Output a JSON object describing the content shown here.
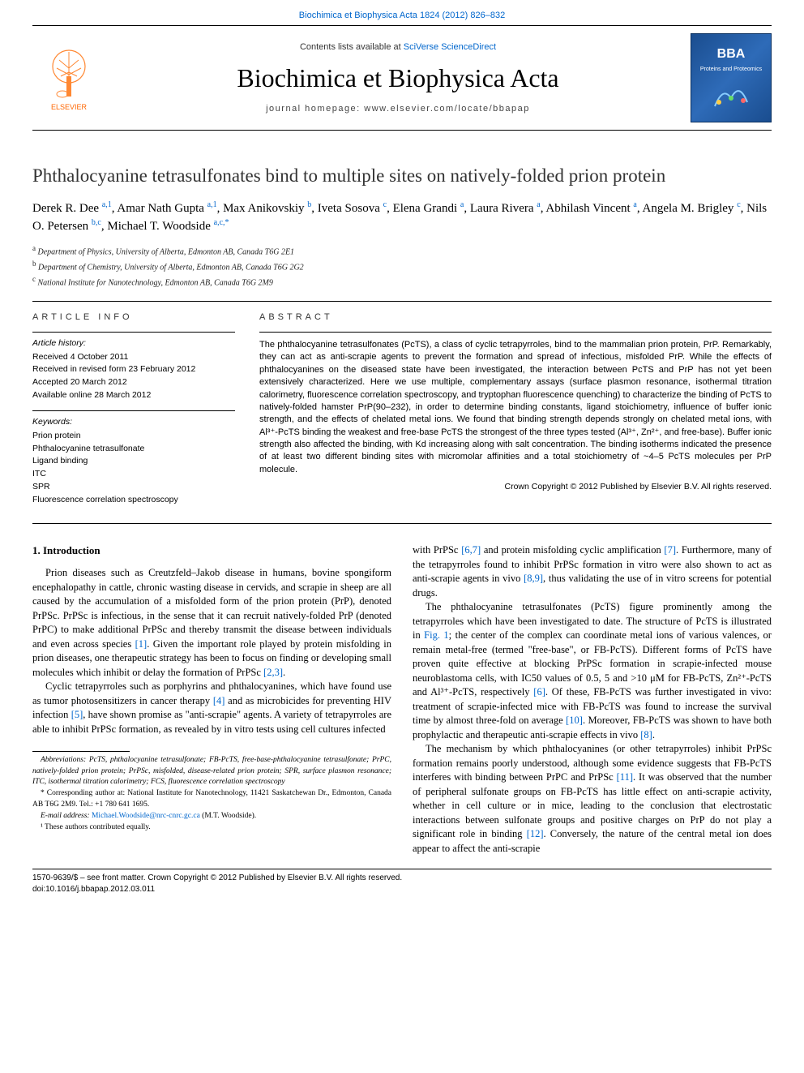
{
  "top_link": "Biochimica et Biophysica Acta 1824 (2012) 826–832",
  "masthead": {
    "contents_prefix": "Contents lists available at ",
    "contents_link": "SciVerse ScienceDirect",
    "journal": "Biochimica et Biophysica Acta",
    "homepage": "journal homepage: www.elsevier.com/locate/bbapap",
    "publisher": "ELSEVIER",
    "right_badge_top": "BBA",
    "right_badge_mid": "Proteins and Proteomics"
  },
  "title": "Phthalocyanine tetrasulfonates bind to multiple sites on natively-folded prion protein",
  "authors_html": "Derek R. Dee <sup>a,1</sup>, Amar Nath Gupta <sup>a,1</sup>, Max Anikovskiy <sup>b</sup>, Iveta Sosova <sup>c</sup>, Elena Grandi <sup>a</sup>, Laura Rivera <sup>a</sup>, Abhilash Vincent <sup>a</sup>, Angela M. Brigley <sup>c</sup>, Nils O. Petersen <sup>b,c</sup>, Michael T. Woodside <sup>a,c,*</sup>",
  "affiliations": [
    {
      "sup": "a",
      "text": "Department of Physics, University of Alberta, Edmonton AB, Canada T6G 2E1"
    },
    {
      "sup": "b",
      "text": "Department of Chemistry, University of Alberta, Edmonton AB, Canada T6G 2G2"
    },
    {
      "sup": "c",
      "text": "National Institute for Nanotechnology, Edmonton AB, Canada T6G 2M9"
    }
  ],
  "article_info": {
    "header": "article info",
    "history_label": "Article history:",
    "history": [
      "Received 4 October 2011",
      "Received in revised form 23 February 2012",
      "Accepted 20 March 2012",
      "Available online 28 March 2012"
    ],
    "keywords_label": "Keywords:",
    "keywords": [
      "Prion protein",
      "Phthalocyanine tetrasulfonate",
      "Ligand binding",
      "ITC",
      "SPR",
      "Fluorescence correlation spectroscopy"
    ]
  },
  "abstract": {
    "header": "abstract",
    "body": "The phthalocyanine tetrasulfonates (PcTS), a class of cyclic tetrapyrroles, bind to the mammalian prion protein, PrP. Remarkably, they can act as anti-scrapie agents to prevent the formation and spread of infectious, misfolded PrP. While the effects of phthalocyanines on the diseased state have been investigated, the interaction between PcTS and PrP has not yet been extensively characterized. Here we use multiple, complementary assays (surface plasmon resonance, isothermal titration calorimetry, fluorescence correlation spectroscopy, and tryptophan fluorescence quenching) to characterize the binding of PcTS to natively-folded hamster PrP(90–232), in order to determine binding constants, ligand stoichiometry, influence of buffer ionic strength, and the effects of chelated metal ions. We found that binding strength depends strongly on chelated metal ions, with Al³⁺-PcTS binding the weakest and free-base PcTS the strongest of the three types tested (Al³⁺, Zn²⁺, and free-base). Buffer ionic strength also affected the binding, with Kd increasing along with salt concentration. The binding isotherms indicated the presence of at least two different binding sites with micromolar affinities and a total stoichiometry of ~4–5 PcTS molecules per PrP molecule.",
    "copyright": "Crown Copyright © 2012 Published by Elsevier B.V. All rights reserved."
  },
  "intro": {
    "heading": "1. Introduction",
    "p1": "Prion diseases such as Creutzfeld–Jakob disease in humans, bovine spongiform encephalopathy in cattle, chronic wasting disease in cervids, and scrapie in sheep are all caused by the accumulation of a misfolded form of the prion protein (PrP), denoted PrPSc. PrPSc is infectious, in the sense that it can recruit natively-folded PrP (denoted PrPC) to make additional PrPSc and thereby transmit the disease between individuals and even across species ",
    "ref1": "[1]",
    "p1b": ". Given the important role played by protein misfolding in prion diseases, one therapeutic strategy has been to focus on finding or developing small molecules which inhibit or delay the formation of PrPSc ",
    "ref2": "[2,3]",
    "p1c": ".",
    "p2a": "Cyclic tetrapyrroles such as porphyrins and phthalocyanines, which have found use as tumor photosensitizers in cancer therapy ",
    "ref3": "[4]",
    "p2b": " and as microbicides for preventing HIV infection ",
    "ref4": "[5]",
    "p2c": ", have shown promise as \"anti-scrapie\" agents. A variety of tetrapyrroles are able to inhibit PrPSc formation, as revealed by in vitro tests using cell cultures infected"
  },
  "col2": {
    "p1a": "with PrPSc ",
    "ref1": "[6,7]",
    "p1b": " and protein misfolding cyclic amplification ",
    "ref2": "[7]",
    "p1c": ". Furthermore, many of the tetrapyrroles found to inhibit PrPSc formation in vitro were also shown to act as anti-scrapie agents in vivo ",
    "ref3": "[8,9]",
    "p1d": ", thus validating the use of in vitro screens for potential drugs.",
    "p2a": "The phthalocyanine tetrasulfonates (PcTS) figure prominently among the tetrapyrroles which have been investigated to date. The structure of PcTS is illustrated in ",
    "fig1": "Fig. 1",
    "p2b": "; the center of the complex can coordinate metal ions of various valences, or remain metal-free (termed \"free-base\", or FB-PcTS). Different forms of PcTS have proven quite effective at blocking PrPSc formation in scrapie-infected mouse neuroblastoma cells, with IC50 values of 0.5, 5 and >10 μM for FB-PcTS, Zn²⁺-PcTS and Al³⁺-PcTS, respectively ",
    "ref4": "[6]",
    "p2c": ". Of these, FB-PcTS was further investigated in vivo: treatment of scrapie-infected mice with FB-PcTS was found to increase the survival time by almost three-fold on average ",
    "ref5": "[10]",
    "p2d": ". Moreover, FB-PcTS was shown to have both prophylactic and therapeutic anti-scrapie effects in vivo ",
    "ref6": "[8]",
    "p2e": ".",
    "p3a": "The mechanism by which phthalocyanines (or other tetrapyrroles) inhibit PrPSc formation remains poorly understood, although some evidence suggests that FB-PcTS interferes with binding between PrPC and PrPSc ",
    "ref7": "[11]",
    "p3b": ". It was observed that the number of peripheral sulfonate groups on FB-PcTS has little effect on anti-scrapie activity, whether in cell culture or in mice, leading to the conclusion that electrostatic interactions between sulfonate groups and positive charges on PrP do not play a significant role in binding ",
    "ref8": "[12]",
    "p3c": ". Conversely, the nature of the central metal ion does appear to affect the anti-scrapie"
  },
  "footnotes": {
    "abbrev": "Abbreviations: PcTS, phthalocyanine tetrasulfonate; FB-PcTS, free-base-phthalocyanine tetrasulfonate; PrPC, natively-folded prion protein; PrPSc, misfolded, disease-related prion protein; SPR, surface plasmon resonance; ITC, isothermal titration calorimetry; FCS, fluorescence correlation spectroscopy",
    "corr": "* Corresponding author at: National Institute for Nanotechnology, 11421 Saskatchewan Dr., Edmonton, Canada AB T6G 2M9. Tel.: +1 780 641 1695.",
    "email_label": "E-mail address: ",
    "email": "Michael.Woodside@nrc-cnrc.gc.ca",
    "email_suffix": " (M.T. Woodside).",
    "equal": "¹ These authors contributed equally."
  },
  "bottom": {
    "line1": "1570-9639/$ – see front matter. Crown Copyright © 2012 Published by Elsevier B.V. All rights reserved.",
    "line2": "doi:10.1016/j.bbapap.2012.03.011"
  },
  "colors": {
    "link": "#0066cc",
    "orange": "#ff6600",
    "badge_bg": "#1a4d8f"
  }
}
